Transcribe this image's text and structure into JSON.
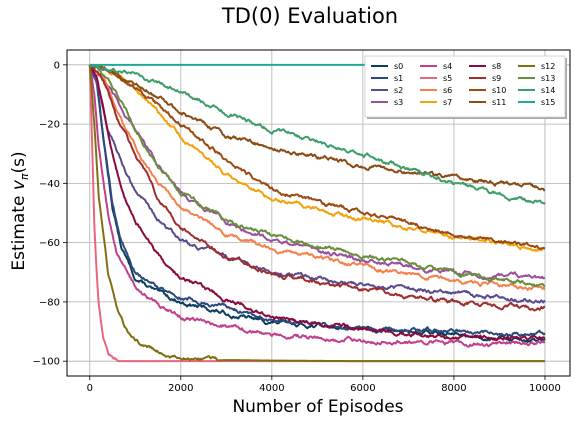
{
  "chart_data": {
    "type": "line",
    "title": "TD(0) Evaluation",
    "xlabel": "Number of Episodes",
    "ylabel": "Estimate v_π(s)",
    "ylabel_main": "Estimate ",
    "ylabel_v": "v",
    "ylabel_sub": "π",
    "ylabel_arg": "(s)",
    "xlim": [
      -500,
      10550
    ],
    "ylim": [
      -105,
      5
    ],
    "xticks": [
      0,
      2000,
      4000,
      6000,
      8000,
      10000
    ],
    "yticks": [
      0,
      -20,
      -40,
      -60,
      -80,
      -100
    ],
    "grid": true,
    "legend_position": "top-right",
    "legend_columns": 4,
    "series": [
      {
        "name": "s0",
        "color": "#0b3d5c",
        "x": [
          0,
          150,
          300,
          500,
          700,
          1000,
          1500,
          2000,
          3000,
          4000,
          6000,
          8000,
          10000
        ],
        "values": [
          0,
          -5,
          -25,
          -48,
          -62,
          -72,
          -77,
          -80,
          -84,
          -87,
          -89,
          -91,
          -93
        ]
      },
      {
        "name": "s1",
        "color": "#2e4a7d",
        "x": [
          0,
          150,
          300,
          500,
          700,
          1000,
          1500,
          2000,
          3000,
          4000,
          6000,
          8000,
          10000
        ],
        "values": [
          0,
          -5,
          -25,
          -47,
          -60,
          -70,
          -75,
          -78,
          -82,
          -86,
          -89,
          -90,
          -91
        ]
      },
      {
        "name": "s2",
        "color": "#5a4a8e",
        "x": [
          0,
          200,
          400,
          700,
          1000,
          1500,
          2000,
          3000,
          4000,
          6000,
          8000,
          10000
        ],
        "values": [
          0,
          -8,
          -22,
          -33,
          -42,
          -52,
          -59,
          -65,
          -70,
          -74,
          -77,
          -80
        ]
      },
      {
        "name": "s3",
        "color": "#9b4f9f",
        "x": [
          0,
          300,
          700,
          1000,
          1500,
          2000,
          3000,
          4000,
          6000,
          8000,
          10000
        ],
        "values": [
          0,
          -5,
          -15,
          -22,
          -34,
          -43,
          -53,
          -59,
          -66,
          -70,
          -72
        ]
      },
      {
        "name": "s4",
        "color": "#c0408e",
        "x": [
          0,
          100,
          200,
          400,
          600,
          1000,
          1500,
          2000,
          3000,
          4000,
          6000,
          8000,
          10000
        ],
        "values": [
          0,
          -10,
          -28,
          -50,
          -64,
          -75,
          -81,
          -85,
          -88,
          -91,
          -93,
          -94,
          -94
        ]
      },
      {
        "name": "s5",
        "color": "#e8677e",
        "x": [
          0,
          50,
          100,
          150,
          200,
          300,
          400,
          500,
          700,
          1000,
          1500,
          10000
        ],
        "values": [
          0,
          -26,
          -55,
          -71,
          -82,
          -93,
          -97,
          -99,
          -99.8,
          -100,
          -100,
          -100
        ]
      },
      {
        "name": "s6",
        "color": "#f4814c",
        "x": [
          0,
          300,
          600,
          1000,
          1500,
          2000,
          3000,
          4000,
          6000,
          8000,
          10000
        ],
        "values": [
          0,
          -5,
          -15,
          -28,
          -40,
          -48,
          -57,
          -62,
          -68,
          -73,
          -76
        ]
      },
      {
        "name": "s7",
        "color": "#f2a20a",
        "x": [
          0,
          600,
          1000,
          2000,
          3000,
          4000,
          6000,
          8000,
          10000
        ],
        "values": [
          0,
          -3,
          -8,
          -24,
          -37,
          -45,
          -52,
          -58,
          -62
        ]
      },
      {
        "name": "s8",
        "color": "#8b0a3d",
        "x": [
          0,
          150,
          300,
          500,
          700,
          1000,
          1500,
          2000,
          3000,
          4000,
          6000,
          8000,
          10000
        ],
        "values": [
          0,
          -3,
          -15,
          -30,
          -42,
          -53,
          -64,
          -72,
          -79,
          -85,
          -89,
          -92,
          -92
        ]
      },
      {
        "name": "s9",
        "color": "#9d2f2f",
        "x": [
          0,
          300,
          600,
          1000,
          1500,
          2000,
          3000,
          4000,
          6000,
          8000,
          10000
        ],
        "values": [
          0,
          -5,
          -18,
          -30,
          -45,
          -55,
          -65,
          -70,
          -76,
          -80,
          -82
        ]
      },
      {
        "name": "s10",
        "color": "#9a4a12",
        "x": [
          0,
          600,
          1000,
          2000,
          3000,
          4000,
          6000,
          8000,
          10000
        ],
        "values": [
          0,
          -3,
          -8,
          -20,
          -32,
          -42,
          -50,
          -57,
          -62
        ]
      },
      {
        "name": "s11",
        "color": "#8b4c14",
        "x": [
          0,
          1000,
          2000,
          3000,
          4000,
          6000,
          8000,
          10000
        ],
        "values": [
          0,
          -6,
          -16,
          -24,
          -28,
          -34,
          -38,
          -42
        ]
      },
      {
        "name": "s12",
        "color": "#7f7014",
        "x": [
          0,
          100,
          200,
          400,
          600,
          800,
          1000,
          1500,
          2000,
          3000,
          4000,
          6000,
          10000
        ],
        "values": [
          0,
          -20,
          -45,
          -70,
          -82,
          -89,
          -93,
          -97,
          -99,
          -99.6,
          -99.8,
          -100,
          -100
        ]
      },
      {
        "name": "s13",
        "color": "#6a8f3c",
        "x": [
          0,
          400,
          800,
          1000,
          1500,
          2000,
          3000,
          4000,
          6000,
          8000,
          10000
        ],
        "values": [
          0,
          -5,
          -15,
          -22,
          -34,
          -43,
          -52,
          -58,
          -64,
          -70,
          -75
        ]
      },
      {
        "name": "s14",
        "color": "#3d9e6a",
        "x": [
          0,
          1000,
          2000,
          3000,
          4000,
          6000,
          8000,
          10000
        ],
        "values": [
          0,
          -3,
          -9,
          -16,
          -22,
          -30,
          -40,
          -47
        ]
      },
      {
        "name": "s15",
        "color": "#1fa89c",
        "x": [
          0,
          10000
        ],
        "values": [
          0,
          0
        ]
      }
    ]
  }
}
